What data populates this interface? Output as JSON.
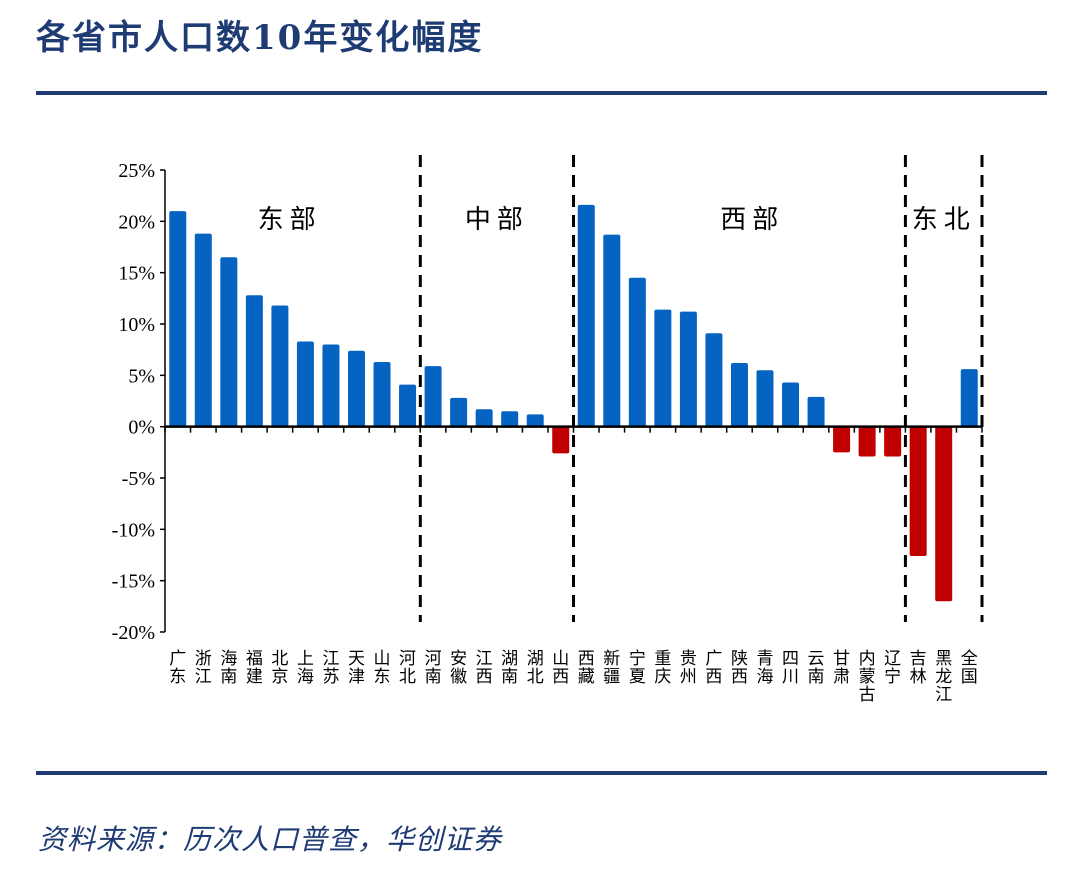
{
  "title": "各省市人口数10年变化幅度",
  "source": "资料来源：历次人口普查，华创证券",
  "chart_data": {
    "type": "bar",
    "title": "",
    "xlabel": "",
    "ylabel": "",
    "ylim": [
      -20,
      25
    ],
    "yticks": [
      25,
      20,
      15,
      10,
      5,
      0,
      -5,
      -10,
      -15,
      -20
    ],
    "ytick_labels": [
      "25%",
      "20%",
      "15%",
      "10%",
      "5%",
      "0%",
      "-5%",
      "-10%",
      "-15%",
      "-20%"
    ],
    "unit": "%",
    "grid": false,
    "colors": {
      "positive": "#0563c1",
      "negative": "#c00000",
      "divider": "#000000"
    },
    "categories": [
      "广东",
      "浙江",
      "海南",
      "福建",
      "北京",
      "上海",
      "江苏",
      "天津",
      "山东",
      "河北",
      "河南",
      "安徽",
      "江西",
      "湖南",
      "湖北",
      "山西",
      "西藏",
      "新疆",
      "宁夏",
      "重庆",
      "贵州",
      "广西",
      "陕西",
      "青海",
      "四川",
      "云南",
      "甘肃",
      "内蒙古",
      "辽宁",
      "吉林",
      "黑龙江",
      "全国"
    ],
    "values": [
      21.0,
      18.8,
      16.5,
      12.8,
      11.8,
      8.3,
      8.0,
      7.4,
      6.3,
      4.1,
      5.9,
      2.8,
      1.7,
      1.5,
      1.2,
      -2.6,
      21.6,
      18.7,
      14.5,
      11.4,
      11.2,
      9.1,
      6.2,
      5.5,
      4.3,
      2.9,
      -2.5,
      -2.9,
      -2.9,
      -12.6,
      -17.0,
      5.6
    ],
    "regions": [
      {
        "label": "东部",
        "start": 0,
        "end": 9
      },
      {
        "label": "中部",
        "start": 10,
        "end": 15
      },
      {
        "label": "西部",
        "start": 16,
        "end": 28
      },
      {
        "label": "东北",
        "start": 28,
        "end": 30
      }
    ]
  }
}
